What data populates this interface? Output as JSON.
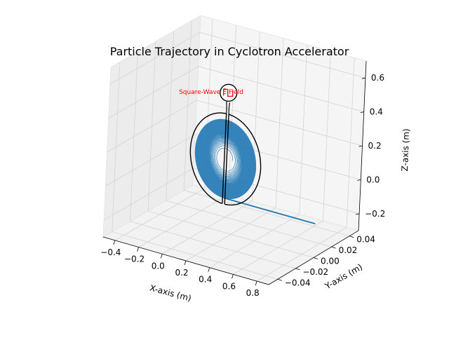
{
  "chart_data": {
    "type": "line",
    "projection": "3d",
    "title": "Particle Trajectory in Cyclotron Accelerator",
    "xlabel": "X-axis (m)",
    "ylabel": "Y-axis (m)",
    "zlabel": "Z-axis (m)",
    "x_ticks": [
      "−0.4",
      "−0.2",
      "0.0",
      "0.2",
      "0.4",
      "0.6",
      "0.8"
    ],
    "y_ticks": [
      "−0.04",
      "−0.02",
      "0.00",
      "0.02",
      "0.04"
    ],
    "z_ticks": [
      "−0.2",
      "0.0",
      "0.2",
      "0.4",
      "0.6"
    ],
    "xlim": [
      -0.45,
      0.8
    ],
    "ylim": [
      -0.05,
      0.05
    ],
    "zlim": [
      -0.32,
      0.68
    ],
    "grid": true,
    "series": [
      {
        "color": "#1f77b4",
        "kind": "spiral",
        "center": [
          0.11,
          0.0,
          0.11
        ],
        "r_start": 0.05,
        "r_end": 0.23,
        "turns": 60,
        "exit_line": {
          "from": [
            0.11,
            0.0,
            -0.12
          ],
          "to": [
            0.8,
            0.0,
            -0.12
          ]
        }
      }
    ],
    "dees": {
      "color": "#000000",
      "center": [
        0.11,
        0.0,
        0.11
      ],
      "outer_radius": 0.265,
      "gap": 0.018,
      "stem_height": 0.07
    },
    "field_source": {
      "label": "Square-Wave $\\vec{E}$-Field",
      "label_display": "Square-Wave Ē-Field",
      "color": "#ff0000",
      "icon": "square-wave-icon"
    }
  }
}
